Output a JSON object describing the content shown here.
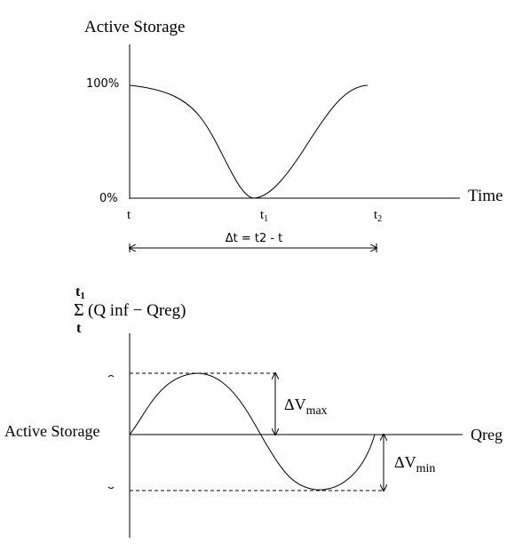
{
  "top_chart": {
    "ylabel": "Active Storage",
    "xlabel": "Time",
    "y_ticks": {
      "top": "100%",
      "bottom": "0%"
    },
    "x_ticks": {
      "start": "t",
      "mid_main": "t",
      "mid_sub": "1",
      "end_main": "t",
      "end_sub": "2"
    },
    "duration_label": "Δt = t2 - t"
  },
  "bottom_chart": {
    "ylabel": {
      "sum_upper": "t",
      "sum_upper_sub": "1",
      "sigma": "Σ",
      "sum_lower": "t",
      "expression": "(Q inf − Qreg)"
    },
    "left_label": "Active Storage",
    "xlabel": "Qreg",
    "dv_max": {
      "main": "ΔV",
      "sub": "max"
    },
    "dv_min": {
      "main": "ΔV",
      "sub": "min"
    }
  }
}
